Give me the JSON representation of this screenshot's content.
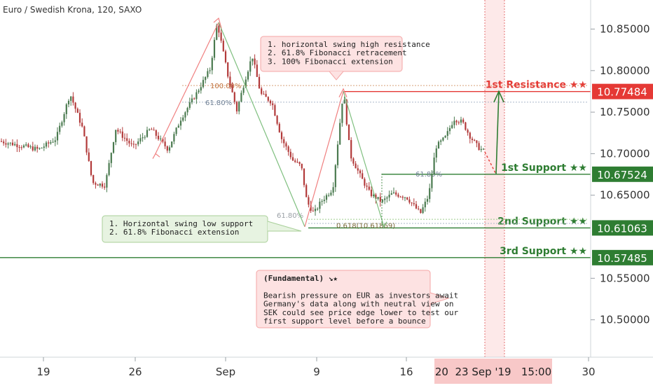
{
  "header": {
    "title": "Euro / Swedish Krona, 120, SAXO"
  },
  "colors": {
    "up": "#4a7a4f",
    "down": "#b23a3a",
    "resistance": "#e53935",
    "support": "#2e7d32",
    "highlight": "#f8c8c8"
  },
  "chart_data": {
    "type": "candlestick",
    "ylim": [
      10.455,
      10.885
    ],
    "y_ticks": [
      "10.85000",
      "10.80000",
      "10.75000",
      "10.70000",
      "10.65000",
      "10.55000",
      "10.50000"
    ],
    "y_tick_values": [
      10.85,
      10.8,
      10.75,
      10.7,
      10.65,
      10.55,
      10.5
    ],
    "x_ticks": [
      "19",
      "26",
      "Sep",
      "9",
      "16",
      "30"
    ],
    "crosshair_date": "20  23 Sep '19   15:00",
    "path": [
      [
        0,
        10.715
      ],
      [
        55,
        10.705
      ],
      [
        80,
        10.718
      ],
      [
        100,
        10.772
      ],
      [
        118,
        10.73
      ],
      [
        132,
        10.665
      ],
      [
        150,
        10.662
      ],
      [
        165,
        10.73
      ],
      [
        190,
        10.708
      ],
      [
        215,
        10.73
      ],
      [
        240,
        10.705
      ],
      [
        258,
        10.742
      ],
      [
        280,
        10.772
      ],
      [
        300,
        10.802
      ],
      [
        310,
        10.858
      ],
      [
        325,
        10.795
      ],
      [
        338,
        10.752
      ],
      [
        350,
        10.79
      ],
      [
        360,
        10.818
      ],
      [
        372,
        10.772
      ],
      [
        388,
        10.762
      ],
      [
        402,
        10.718
      ],
      [
        418,
        10.692
      ],
      [
        430,
        10.685
      ],
      [
        438,
        10.642
      ],
      [
        448,
        10.628
      ],
      [
        458,
        10.642
      ],
      [
        475,
        10.658
      ],
      [
        490,
        10.775
      ],
      [
        500,
        10.698
      ],
      [
        515,
        10.672
      ],
      [
        528,
        10.652
      ],
      [
        545,
        10.642
      ],
      [
        560,
        10.652
      ],
      [
        580,
        10.648
      ],
      [
        600,
        10.628
      ],
      [
        612,
        10.65
      ],
      [
        622,
        10.708
      ],
      [
        636,
        10.72
      ],
      [
        648,
        10.742
      ],
      [
        660,
        10.738
      ],
      [
        670,
        10.722
      ],
      [
        682,
        10.708
      ],
      [
        692,
        10.702
      ]
    ],
    "levels": [
      {
        "name": "1st Resistance ★★",
        "value": "10.77484",
        "y": 10.77484,
        "kind": "resistance"
      },
      {
        "name": "1st Support ★★",
        "value": "10.67524",
        "y": 10.67524,
        "kind": "support"
      },
      {
        "name": "2nd Support ★★",
        "value": "10.61063",
        "y": 10.61063,
        "kind": "support"
      },
      {
        "name": "3rd Support ★★",
        "value": "10.57485",
        "y": 10.57485,
        "kind": "support"
      }
    ],
    "fib_labels": [
      {
        "text": "100.00%"
      },
      {
        "text": "61.80%"
      },
      {
        "text": "61.80%"
      },
      {
        "text": "61.80%"
      },
      {
        "text": "0.618(10.61869)"
      }
    ],
    "annotations": [
      {
        "lines": [
          "1. horizontal swing high resistance",
          "2. 61.8% Fibonacci retracement",
          "3. 100% Fibonacci extension"
        ]
      },
      {
        "lines": [
          "1. Horizontal swing low support",
          "2. 61.8% Fibonacci extension"
        ]
      },
      {
        "lines": [
          "(Fundamental) ↘★",
          "",
          "Bearish pressure on EUR as investors await",
          "Germany's data along with neutral view on",
          "SEK could see price edge lower to test our",
          "first support level before a bounce"
        ]
      }
    ]
  }
}
